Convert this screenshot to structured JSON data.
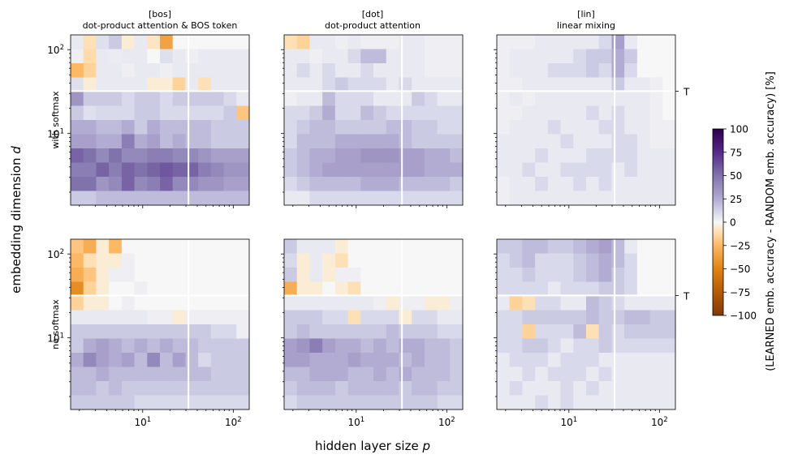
{
  "chart_data": {
    "type": "heatmap",
    "panels": [
      {
        "row": "with softmax",
        "code": "[bos]",
        "label": "dot-product attention & BOS token"
      },
      {
        "row": "with softmax",
        "code": "[dot]",
        "label": "dot-product attention"
      },
      {
        "row": "with softmax",
        "code": "[lin]",
        "label": "linear mixing"
      },
      {
        "row": "no softmax",
        "code": "[bos]",
        "label": "dot-product attention & BOS token"
      },
      {
        "row": "no softmax",
        "code": "[dot]",
        "label": "dot-product attention"
      },
      {
        "row": "no softmax",
        "code": "[lin]",
        "label": "linear mixing"
      }
    ],
    "columns": [
      {
        "code": "[bos]",
        "label": "dot-product attention & BOS token"
      },
      {
        "code": "[dot]",
        "label": "dot-product attention"
      },
      {
        "code": "[lin]",
        "label": "linear mixing"
      }
    ],
    "rows": [
      "with softmax",
      "no softmax"
    ],
    "xlabel": "hidden layer size",
    "xvar": "p",
    "ylabel": "embedding dimension",
    "yvar": "d",
    "x_scale": "log",
    "y_scale": "log",
    "xlim": [
      1.6,
      150
    ],
    "ylim": [
      1.4,
      150
    ],
    "x_ticks": [
      "10^1",
      "10^2"
    ],
    "y_ticks": [
      "10^1",
      "10^2"
    ],
    "reference_line_x": 32,
    "reference_line_y": 32,
    "reference_label": "T",
    "colorbar": {
      "label": "(LEARNED emb. accuracy - RANDOM emb. accuracy)  [%]",
      "range": [
        -100,
        100
      ],
      "ticks": [
        100,
        75,
        50,
        25,
        0,
        -25,
        -50,
        -75,
        -100
      ],
      "colormap": "orange-white-purple",
      "neg_color": "#7f3b08",
      "mid_color": "#f7f7f7",
      "pos_color": "#2d004b"
    },
    "grid_shape": [
      12,
      14
    ],
    "grid_note": "rows ordered from top (large d) to bottom (small d); values in %",
    "values": [
      [
        [
          5,
          -10,
          8,
          15,
          -5,
          5,
          -8,
          -35,
          0,
          0,
          0,
          0,
          0,
          0
        ],
        [
          3,
          -12,
          5,
          4,
          5,
          5,
          0,
          8,
          5,
          3,
          5,
          5,
          5,
          5
        ],
        [
          -25,
          -15,
          5,
          5,
          3,
          5,
          5,
          3,
          5,
          5,
          5,
          5,
          5,
          5
        ],
        [
          8,
          -5,
          5,
          5,
          5,
          5,
          -5,
          -5,
          -15,
          5,
          -10,
          5,
          5,
          5
        ],
        [
          35,
          15,
          15,
          15,
          10,
          15,
          15,
          10,
          15,
          15,
          15,
          15,
          10,
          5
        ],
        [
          15,
          8,
          10,
          10,
          10,
          15,
          15,
          10,
          10,
          10,
          10,
          10,
          15,
          -20
        ],
        [
          25,
          25,
          20,
          20,
          25,
          15,
          25,
          20,
          20,
          20,
          20,
          15,
          15,
          15
        ],
        [
          30,
          30,
          25,
          25,
          45,
          25,
          30,
          20,
          25,
          20,
          20,
          15,
          15,
          15
        ],
        [
          55,
          50,
          40,
          50,
          40,
          40,
          45,
          45,
          40,
          40,
          35,
          30,
          30,
          30
        ],
        [
          45,
          45,
          55,
          45,
          55,
          50,
          55,
          60,
          55,
          55,
          45,
          40,
          35,
          35
        ],
        [
          50,
          50,
          35,
          40,
          55,
          40,
          45,
          55,
          40,
          40,
          35,
          35,
          30,
          30
        ],
        [
          15,
          15,
          20,
          20,
          20,
          20,
          20,
          20,
          20,
          20,
          20,
          20,
          20,
          20
        ]
      ],
      [
        [
          -10,
          -15,
          5,
          5,
          3,
          5,
          3,
          3,
          3,
          5,
          5,
          3,
          3,
          3
        ],
        [
          5,
          5,
          3,
          5,
          5,
          10,
          20,
          20,
          5,
          5,
          5,
          3,
          3,
          3
        ],
        [
          5,
          10,
          5,
          10,
          5,
          5,
          10,
          5,
          5,
          5,
          5,
          3,
          3,
          3
        ],
        [
          5,
          5,
          5,
          10,
          15,
          10,
          10,
          10,
          5,
          10,
          5,
          5,
          5,
          5
        ],
        [
          3,
          5,
          5,
          20,
          10,
          10,
          10,
          5,
          5,
          5,
          15,
          10,
          5,
          5
        ],
        [
          10,
          10,
          15,
          25,
          10,
          10,
          20,
          15,
          10,
          10,
          10,
          10,
          10,
          10
        ],
        [
          10,
          15,
          20,
          20,
          15,
          15,
          15,
          15,
          20,
          20,
          15,
          15,
          10,
          10
        ],
        [
          10,
          20,
          20,
          20,
          25,
          25,
          25,
          25,
          25,
          20,
          15,
          15,
          15,
          15
        ],
        [
          15,
          20,
          25,
          25,
          30,
          30,
          35,
          35,
          35,
          30,
          30,
          25,
          25,
          20
        ],
        [
          15,
          20,
          25,
          30,
          30,
          30,
          30,
          30,
          30,
          30,
          30,
          25,
          25,
          25
        ],
        [
          10,
          15,
          20,
          20,
          20,
          20,
          25,
          25,
          25,
          20,
          20,
          20,
          20,
          15
        ],
        [
          5,
          5,
          10,
          10,
          10,
          10,
          10,
          10,
          10,
          10,
          10,
          10,
          10,
          10
        ]
      ],
      [
        [
          3,
          3,
          3,
          5,
          5,
          5,
          5,
          5,
          10,
          30,
          5,
          0,
          0,
          0
        ],
        [
          3,
          5,
          5,
          5,
          5,
          5,
          10,
          15,
          15,
          25,
          15,
          0,
          0,
          0
        ],
        [
          3,
          5,
          5,
          5,
          10,
          10,
          10,
          15,
          10,
          25,
          10,
          0,
          0,
          0
        ],
        [
          3,
          3,
          5,
          5,
          5,
          5,
          5,
          5,
          5,
          15,
          5,
          5,
          3,
          0
        ],
        [
          3,
          5,
          3,
          5,
          5,
          5,
          5,
          5,
          5,
          5,
          5,
          5,
          3,
          0
        ],
        [
          3,
          3,
          5,
          5,
          5,
          5,
          5,
          10,
          5,
          10,
          5,
          5,
          3,
          0
        ],
        [
          3,
          5,
          5,
          5,
          10,
          5,
          5,
          5,
          10,
          10,
          5,
          5,
          3,
          3
        ],
        [
          5,
          5,
          5,
          5,
          5,
          10,
          5,
          5,
          5,
          10,
          10,
          5,
          3,
          3
        ],
        [
          5,
          5,
          5,
          10,
          5,
          5,
          5,
          10,
          10,
          10,
          10,
          5,
          5,
          5
        ],
        [
          5,
          5,
          10,
          5,
          5,
          10,
          10,
          10,
          10,
          5,
          10,
          5,
          5,
          5
        ],
        [
          3,
          5,
          5,
          10,
          5,
          5,
          10,
          5,
          10,
          5,
          5,
          5,
          5,
          5
        ],
        [
          3,
          5,
          5,
          5,
          5,
          5,
          5,
          5,
          5,
          5,
          5,
          5,
          5,
          5
        ]
      ],
      [
        [
          -20,
          -30,
          -5,
          -25,
          0,
          0,
          0,
          0,
          0,
          0,
          0,
          0,
          0,
          0
        ],
        [
          -25,
          -10,
          -5,
          -5,
          3,
          0,
          0,
          0,
          0,
          0,
          0,
          0,
          0,
          0
        ],
        [
          -30,
          -20,
          -5,
          3,
          3,
          0,
          0,
          0,
          0,
          0,
          0,
          0,
          0,
          0
        ],
        [
          -45,
          -15,
          -5,
          0,
          0,
          3,
          0,
          0,
          0,
          0,
          0,
          0,
          0,
          0
        ],
        [
          -15,
          -5,
          -5,
          0,
          3,
          0,
          0,
          0,
          0,
          0,
          0,
          0,
          0,
          0
        ],
        [
          5,
          5,
          5,
          5,
          5,
          5,
          3,
          3,
          -5,
          3,
          3,
          3,
          3,
          3
        ],
        [
          15,
          15,
          15,
          15,
          15,
          15,
          15,
          15,
          15,
          15,
          15,
          10,
          10,
          3
        ],
        [
          15,
          25,
          30,
          25,
          20,
          25,
          20,
          25,
          20,
          20,
          15,
          15,
          15,
          15
        ],
        [
          25,
          40,
          30,
          25,
          30,
          20,
          40,
          20,
          30,
          20,
          10,
          15,
          15,
          15
        ],
        [
          20,
          20,
          25,
          20,
          20,
          20,
          20,
          20,
          20,
          20,
          20,
          15,
          15,
          15
        ],
        [
          20,
          20,
          15,
          20,
          15,
          15,
          15,
          15,
          15,
          15,
          15,
          15,
          15,
          15
        ],
        [
          15,
          15,
          15,
          15,
          15,
          10,
          10,
          10,
          10,
          10,
          10,
          10,
          10,
          10
        ]
      ],
      [
        [
          15,
          5,
          5,
          5,
          -5,
          0,
          0,
          0,
          0,
          0,
          0,
          0,
          0,
          0
        ],
        [
          10,
          -5,
          5,
          -5,
          -10,
          0,
          0,
          0,
          0,
          0,
          0,
          0,
          0,
          0
        ],
        [
          15,
          -5,
          5,
          -5,
          3,
          3,
          0,
          0,
          0,
          0,
          0,
          0,
          0,
          0
        ],
        [
          -30,
          -5,
          -5,
          0,
          -5,
          -10,
          0,
          0,
          0,
          0,
          0,
          0,
          0,
          0
        ],
        [
          5,
          5,
          5,
          5,
          5,
          5,
          5,
          3,
          -5,
          3,
          3,
          -5,
          -5,
          3
        ],
        [
          15,
          15,
          15,
          10,
          10,
          -10,
          10,
          10,
          10,
          -5,
          10,
          10,
          5,
          5
        ],
        [
          15,
          20,
          15,
          15,
          15,
          15,
          15,
          15,
          20,
          15,
          15,
          15,
          10,
          10
        ],
        [
          30,
          35,
          45,
          30,
          25,
          25,
          20,
          25,
          20,
          25,
          25,
          20,
          20,
          15
        ],
        [
          30,
          30,
          25,
          25,
          25,
          30,
          25,
          25,
          25,
          20,
          25,
          20,
          20,
          15
        ],
        [
          20,
          20,
          25,
          25,
          25,
          20,
          20,
          25,
          20,
          25,
          20,
          20,
          20,
          15
        ],
        [
          15,
          20,
          20,
          20,
          15,
          20,
          20,
          20,
          20,
          15,
          20,
          20,
          15,
          15
        ],
        [
          10,
          15,
          15,
          15,
          15,
          15,
          15,
          15,
          15,
          15,
          15,
          15,
          10,
          10
        ]
      ],
      [
        [
          15,
          15,
          20,
          20,
          15,
          15,
          20,
          25,
          30,
          20,
          5,
          0,
          0,
          0
        ],
        [
          10,
          15,
          20,
          10,
          10,
          10,
          15,
          20,
          25,
          20,
          10,
          0,
          0,
          0
        ],
        [
          10,
          10,
          15,
          10,
          10,
          10,
          15,
          20,
          25,
          15,
          10,
          0,
          0,
          0
        ],
        [
          10,
          10,
          10,
          10,
          5,
          10,
          10,
          10,
          15,
          15,
          10,
          0,
          0,
          0
        ],
        [
          5,
          -15,
          -10,
          10,
          10,
          5,
          5,
          20,
          15,
          10,
          5,
          5,
          5,
          5
        ],
        [
          10,
          10,
          15,
          15,
          15,
          15,
          15,
          20,
          15,
          15,
          20,
          20,
          15,
          15
        ],
        [
          10,
          10,
          -15,
          10,
          10,
          10,
          20,
          -10,
          15,
          10,
          15,
          15,
          15,
          15
        ],
        [
          10,
          10,
          15,
          15,
          10,
          5,
          10,
          10,
          15,
          10,
          10,
          10,
          10,
          10
        ],
        [
          5,
          10,
          10,
          10,
          5,
          10,
          10,
          10,
          5,
          5,
          5,
          5,
          5,
          5
        ],
        [
          5,
          5,
          10,
          5,
          10,
          10,
          10,
          5,
          10,
          5,
          5,
          5,
          5,
          5
        ],
        [
          5,
          10,
          5,
          5,
          5,
          10,
          5,
          10,
          5,
          5,
          5,
          5,
          5,
          5
        ],
        [
          5,
          5,
          5,
          10,
          5,
          10,
          5,
          5,
          5,
          5,
          5,
          5,
          5,
          5
        ]
      ]
    ]
  }
}
